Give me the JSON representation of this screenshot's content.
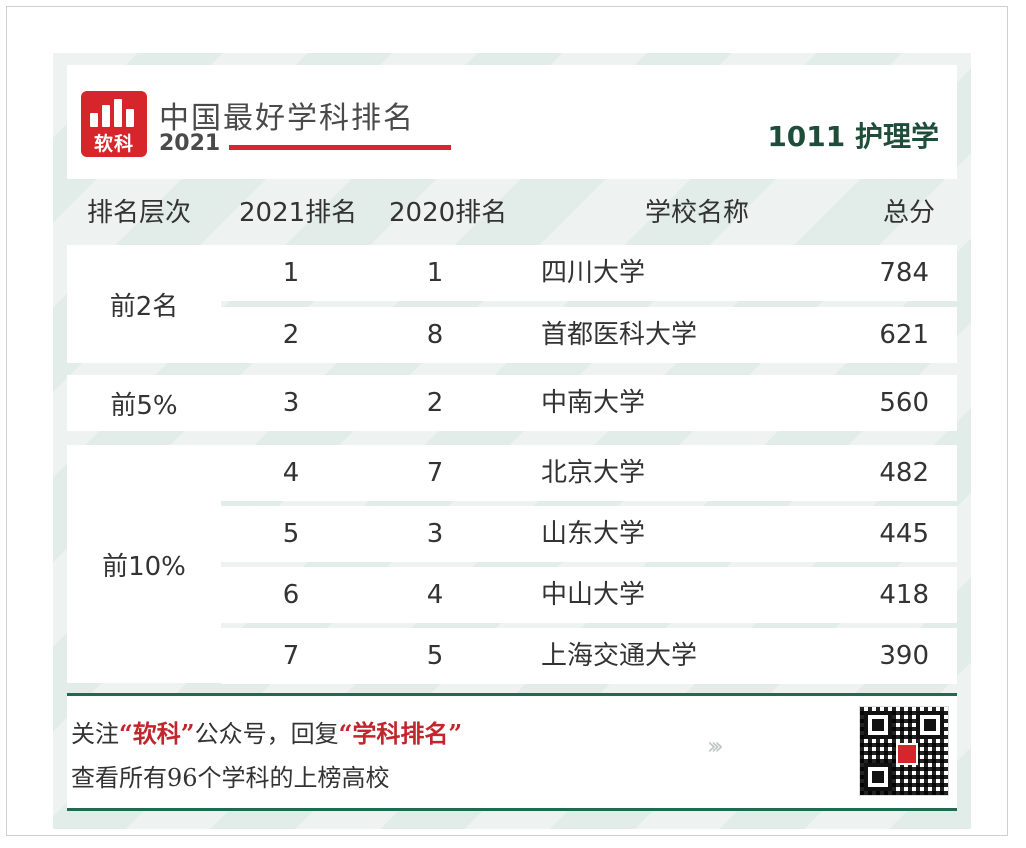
{
  "header": {
    "logo_text": "软科",
    "title": "中国最好学科排名",
    "year": "2021",
    "subject": "1011 护理学"
  },
  "table": {
    "columns": [
      "排名层次",
      "2021排名",
      "2020排名",
      "学校名称",
      "总分"
    ],
    "groups": [
      {
        "label": "前2名"
      },
      {
        "label": "前5%"
      },
      {
        "label": "前10%"
      }
    ],
    "rows": [
      {
        "rank2021": "1",
        "rank2020": "1",
        "school": "四川大学",
        "score": "784"
      },
      {
        "rank2021": "2",
        "rank2020": "8",
        "school": "首都医科大学",
        "score": "621"
      },
      {
        "rank2021": "3",
        "rank2020": "2",
        "school": "中南大学",
        "score": "560"
      },
      {
        "rank2021": "4",
        "rank2020": "7",
        "school": "北京大学",
        "score": "482"
      },
      {
        "rank2021": "5",
        "rank2020": "3",
        "school": "山东大学",
        "score": "445"
      },
      {
        "rank2021": "6",
        "rank2020": "4",
        "school": "中山大学",
        "score": "418"
      },
      {
        "rank2021": "7",
        "rank2020": "5",
        "school": "上海交通大学",
        "score": "390"
      }
    ]
  },
  "footer": {
    "line1_a": "关注",
    "line1_hl1": "“软科”",
    "line1_b": "公众号，回复",
    "line1_hl2": "“学科排名”",
    "line2": "查看所有96个学科的上榜高校",
    "arrows": "›››"
  }
}
